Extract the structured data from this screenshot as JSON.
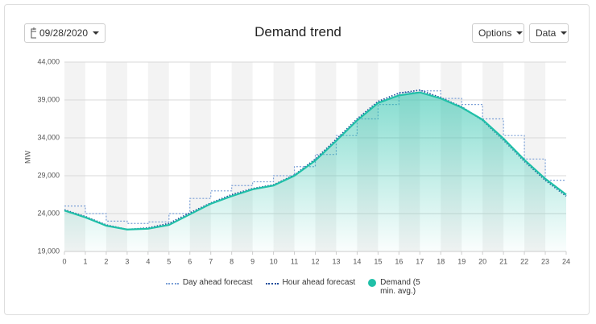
{
  "controls": {
    "date": "09/28/2020",
    "buttons": [
      "Options",
      "Data"
    ]
  },
  "chart_data": {
    "type": "line",
    "title": "Demand trend",
    "y_label": "MW",
    "x": [
      0,
      1,
      2,
      3,
      4,
      5,
      6,
      7,
      8,
      9,
      10,
      11,
      12,
      13,
      14,
      15,
      16,
      17,
      18,
      19,
      20,
      21,
      22,
      23,
      24
    ],
    "xlim": [
      0,
      24
    ],
    "xticks": [
      0,
      1,
      2,
      3,
      4,
      5,
      6,
      7,
      8,
      9,
      10,
      11,
      12,
      13,
      14,
      15,
      16,
      17,
      18,
      19,
      20,
      21,
      22,
      23,
      24
    ],
    "ylim": [
      19000,
      44000
    ],
    "yticks": [
      {
        "value": 19000,
        "label": "19,000"
      },
      {
        "value": 24000,
        "label": "24,000"
      },
      {
        "value": 29000,
        "label": "29,000"
      },
      {
        "value": 34000,
        "label": "34,000"
      },
      {
        "value": 39000,
        "label": "39,000"
      },
      {
        "value": 44000,
        "label": "44,000"
      }
    ],
    "grid": true,
    "series": [
      {
        "name": "Day ahead forecast",
        "color": "#7b9fd6",
        "style": "step",
        "values": [
          25000,
          24000,
          23000,
          22700,
          22900,
          24000,
          26000,
          27000,
          27700,
          28200,
          29000,
          30200,
          31800,
          34300,
          36500,
          38400,
          40000,
          40200,
          39200,
          38400,
          36500,
          34300,
          31200,
          28400,
          28400
        ]
      },
      {
        "name": "Hour ahead forecast",
        "color": "#1f4e9c",
        "style": "dotted",
        "values": [
          24500,
          23600,
          22500,
          21900,
          22100,
          22700,
          24100,
          25400,
          26500,
          27300,
          27800,
          29100,
          31200,
          33800,
          36500,
          38800,
          39900,
          40300,
          39300,
          38100,
          36300,
          33700,
          30900,
          28400,
          26300
        ]
      },
      {
        "name": "Demand (5 min. avg.)",
        "color": "#20c0a8",
        "style": "area",
        "values": [
          24400,
          23500,
          22400,
          21900,
          22000,
          22500,
          23900,
          25300,
          26300,
          27200,
          27700,
          29000,
          31000,
          33600,
          36300,
          38600,
          39600,
          40000,
          39200,
          38000,
          36400,
          33900,
          31100,
          28600,
          26500
        ]
      }
    ]
  }
}
